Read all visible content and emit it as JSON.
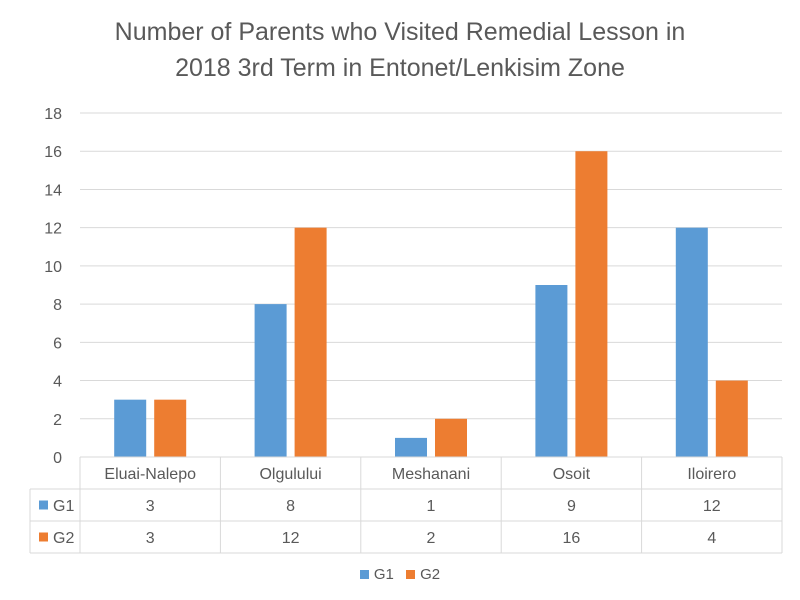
{
  "chart_data": {
    "type": "bar",
    "title_lines": [
      "Number of Parents who Visited Remedial Lesson in",
      "2018 3rd Term in Entonet/Lenkisim Zone"
    ],
    "categories": [
      "Eluai-Nalepo",
      "Olgulului",
      "Meshanani",
      "Osoit",
      "Iloirero"
    ],
    "series": [
      {
        "name": "G1",
        "color": "#5B9BD5",
        "values": [
          3,
          8,
          1,
          9,
          12
        ]
      },
      {
        "name": "G2",
        "color": "#ED7D31",
        "values": [
          3,
          12,
          2,
          16,
          4
        ]
      }
    ],
    "ylim": [
      0,
      18
    ],
    "yticks": [
      0,
      2,
      4,
      6,
      8,
      10,
      12,
      14,
      16,
      18
    ],
    "grid": true,
    "data_table": true,
    "legend": "bottom-center"
  }
}
